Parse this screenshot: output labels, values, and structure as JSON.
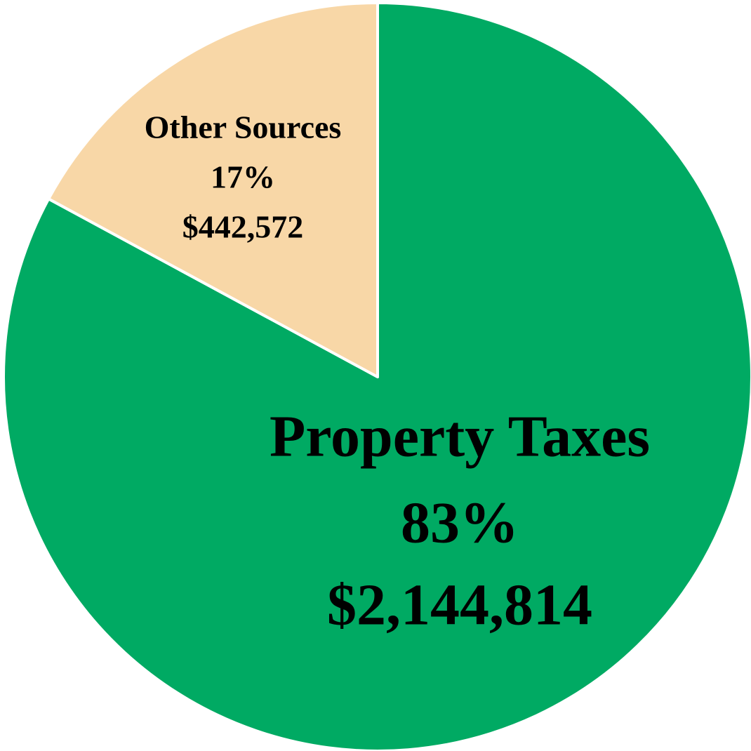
{
  "chart_data": {
    "type": "pie",
    "categories": [
      "Property Taxes",
      "Other Sources"
    ],
    "values": [
      2144814,
      442572
    ],
    "value_labels": [
      "$2,144,814",
      "$442,572"
    ],
    "percents": [
      83,
      17
    ],
    "percent_labels": [
      "83%",
      "17%"
    ],
    "colors": [
      "#00aa63",
      "#f8d7a7"
    ]
  }
}
